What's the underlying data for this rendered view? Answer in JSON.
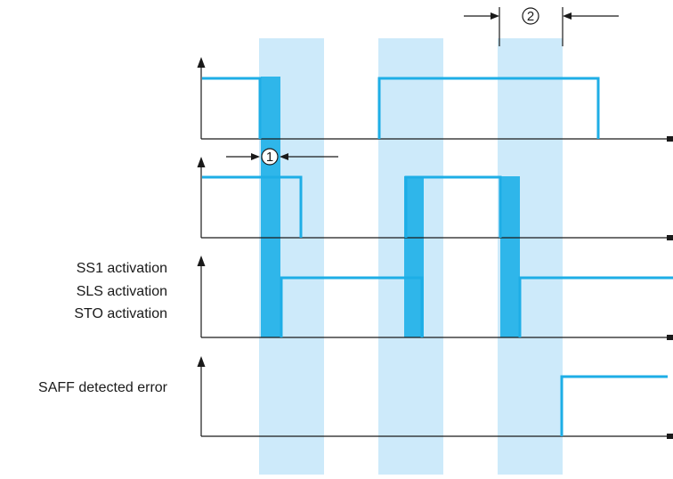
{
  "labels": {
    "ss1": "SS1 activation",
    "sls": "SLS activation",
    "sto": "STO activation",
    "saff": "SAFF detected error"
  },
  "markers": {
    "one": "1",
    "two": "2"
  },
  "colors": {
    "signal": "#1eaee6",
    "band_light": "#cdeafa",
    "band_dark": "#2fb6ea",
    "axis": "#1a1a1a"
  }
}
